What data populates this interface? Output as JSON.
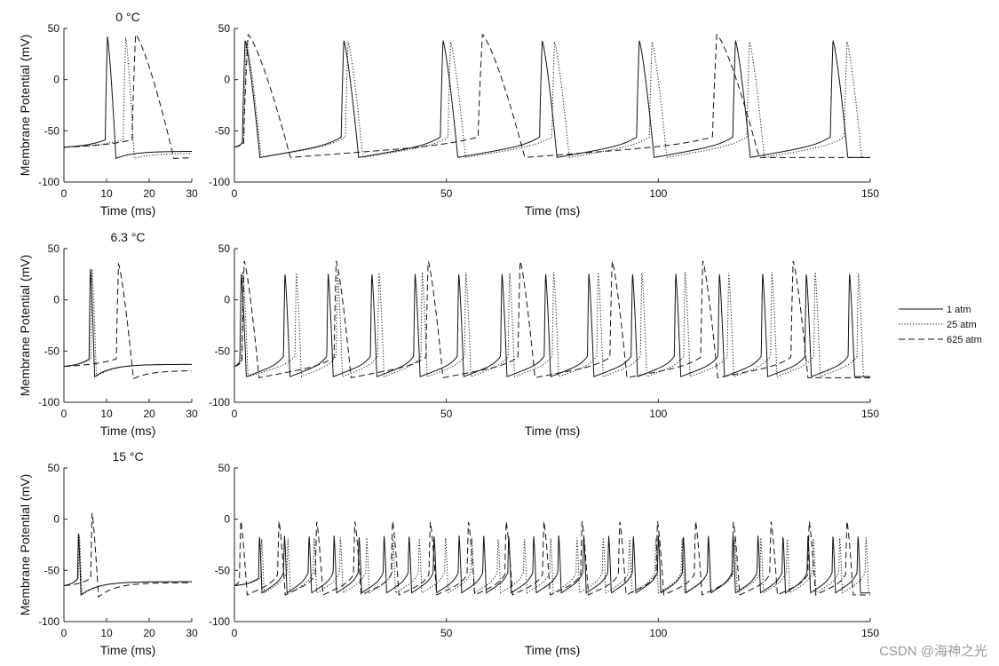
{
  "chart_data": {
    "type": "line",
    "ylabel": "Membrane Potential (mV)",
    "xlabel": "Time (ms)",
    "ylim": [
      -100,
      50
    ],
    "yticks": [
      -100,
      -50,
      0,
      50
    ],
    "legend": {
      "placement": "right",
      "entries": [
        {
          "name": "1 atm",
          "style": "solid"
        },
        {
          "name": "25 atm",
          "style": "dotted"
        },
        {
          "name": "625 atm",
          "style": "dashed"
        }
      ]
    },
    "rows": [
      {
        "title": "0 °C",
        "short": {
          "xlim": [
            0,
            30
          ],
          "xticks": [
            0,
            10,
            20,
            30
          ],
          "series": [
            {
              "name": "1 atm",
              "style": "solid",
              "rest": -66,
              "peak": 42,
              "trough": -77,
              "spikes": [
                10.2
              ],
              "rise": 0.5,
              "fall": 2.0,
              "ahp": 2.0,
              "decayTo": -70
            },
            {
              "name": "25 atm",
              "style": "dotted",
              "rest": -66,
              "peak": 41,
              "trough": -77,
              "spikes": [
                14.5
              ],
              "rise": 0.6,
              "fall": 2.0,
              "ahp": 2.2,
              "decayTo": -72
            },
            {
              "name": "625 atm",
              "style": "dashed",
              "rest": -66,
              "peak": 44,
              "trough": -77,
              "spikes": [
                16.8
              ],
              "rise": 0.8,
              "fall": 9.0,
              "ahp": 2.5,
              "decayTo": -76
            }
          ]
        },
        "long": {
          "xlim": [
            0,
            150
          ],
          "xticks": [
            0,
            50,
            100,
            150
          ],
          "series": [
            {
              "name": "1 atm",
              "style": "solid",
              "rest": -66,
              "peak": 38,
              "trough": -76,
              "spikes": [
                2.5,
                25.8,
                49.2,
                72.6,
                95.5,
                118.2,
                141.2
              ],
              "rise": 0.6,
              "fall": 3.5,
              "ahp": 3.0,
              "decayTo": -76
            },
            {
              "name": "25 atm",
              "style": "dotted",
              "rest": -66,
              "peak": 37,
              "trough": -76,
              "spikes": [
                2.8,
                26.8,
                51.0,
                75.5,
                98.5,
                121.5,
                144.5
              ],
              "rise": 0.6,
              "fall": 3.5,
              "ahp": 3.0,
              "decayTo": -76
            },
            {
              "name": "625 atm",
              "style": "dashed",
              "rest": -66,
              "peak": 44,
              "trough": -76,
              "spikes": [
                3.2,
                58.5,
                113.8
              ],
              "rise": 1.0,
              "fall": 10.0,
              "ahp": 3.0,
              "decayTo": -76
            }
          ]
        }
      },
      {
        "title": "6.3 °C",
        "short": {
          "xlim": [
            0,
            30
          ],
          "xticks": [
            0,
            10,
            20,
            30
          ],
          "series": [
            {
              "name": "1 atm",
              "style": "solid",
              "rest": -65,
              "peak": 30,
              "trough": -75,
              "spikes": [
                6.2
              ],
              "rise": 0.3,
              "fall": 1.0,
              "ahp": 1.5,
              "decayTo": -63
            },
            {
              "name": "25 atm",
              "style": "dotted",
              "rest": -65,
              "peak": 30,
              "trough": -75,
              "spikes": [
                6.6
              ],
              "rise": 0.3,
              "fall": 1.0,
              "ahp": 1.5,
              "decayTo": -63
            },
            {
              "name": "625 atm",
              "style": "dashed",
              "rest": -65,
              "peak": 35,
              "trough": -77,
              "spikes": [
                12.8
              ],
              "rise": 0.5,
              "fall": 3.5,
              "ahp": 2.0,
              "decayTo": -69
            }
          ]
        },
        "long": {
          "xlim": [
            0,
            150
          ],
          "xticks": [
            0,
            50,
            100,
            150
          ],
          "series": [
            {
              "name": "1 atm",
              "style": "solid",
              "rest": -65,
              "peak": 26,
              "trough": -75,
              "spikes": [
                1.6,
                11.9,
                22.1,
                32.4,
                42.6,
                52.9,
                63.1,
                73.4,
                83.6,
                93.9,
                104.1,
                114.4,
                124.6,
                134.9,
                145.1
              ],
              "rise": 0.3,
              "fall": 1.2,
              "ahp": 1.5,
              "decayTo": -75
            },
            {
              "name": "25 atm",
              "style": "dotted",
              "rest": -65,
              "peak": 27,
              "trough": -75,
              "spikes": [
                2.0,
                14.6,
                24.3,
                34.1,
                44.3,
                54.6,
                64.9,
                75.3,
                85.8,
                96.1,
                106.3,
                116.6,
                126.8,
                137.0,
                147.2
              ],
              "rise": 0.3,
              "fall": 1.2,
              "ahp": 1.5,
              "decayTo": -75
            },
            {
              "name": "625 atm",
              "style": "dashed",
              "rest": -65,
              "peak": 38,
              "trough": -76,
              "spikes": [
                2.3,
                24.0,
                45.7,
                67.4,
                89.1,
                110.5,
                131.8
              ],
              "rise": 0.5,
              "fall": 3.5,
              "ahp": 2.0,
              "decayTo": -76
            }
          ]
        }
      },
      {
        "title": "15 °C",
        "short": {
          "xlim": [
            0,
            30
          ],
          "xticks": [
            0,
            10,
            20,
            30
          ],
          "series": [
            {
              "name": "1 atm",
              "style": "solid",
              "rest": -65,
              "peak": -14,
              "trough": -74,
              "spikes": [
                3.4
              ],
              "rise": 0.2,
              "fall": 0.6,
              "ahp": 1.5,
              "decayTo": -61
            },
            {
              "name": "25 atm",
              "style": "dotted",
              "rest": -65,
              "peak": -15,
              "trough": -74,
              "spikes": [
                3.6
              ],
              "rise": 0.2,
              "fall": 0.6,
              "ahp": 1.5,
              "decayTo": -61
            },
            {
              "name": "625 atm",
              "style": "dashed",
              "rest": -65,
              "peak": 6,
              "trough": -76,
              "spikes": [
                6.6
              ],
              "rise": 0.3,
              "fall": 1.5,
              "ahp": 1.5,
              "decayTo": -62
            }
          ]
        },
        "long": {
          "xlim": [
            0,
            150
          ],
          "xticks": [
            0,
            50,
            100,
            150
          ],
          "series": [
            {
              "name": "1 atm",
              "style": "solid",
              "rest": -65,
              "peak": -16,
              "trough": -72,
              "spikes": [
                5.9,
                11.8,
                17.6,
                23.5,
                29.4,
                35.3,
                41.2,
                47.1,
                53.0,
                58.8,
                64.7,
                70.6,
                76.5,
                82.4,
                88.3,
                94.1,
                100.0,
                105.9,
                111.8,
                117.6,
                123.5,
                129.4,
                135.3,
                141.2,
                147.1
              ],
              "rise": 0.2,
              "fall": 0.6,
              "ahp": 1.0,
              "decayTo": -72
            },
            {
              "name": "25 atm",
              "style": "dotted",
              "rest": -65,
              "peak": -18,
              "trough": -72,
              "spikes": [
                6.4,
                12.6,
                18.8,
                25.0,
                31.2,
                37.4,
                43.6,
                49.8,
                56.0,
                62.2,
                68.4,
                74.6,
                80.8,
                87.0,
                93.2,
                99.4,
                105.6,
                111.8,
                118.0,
                124.2,
                130.4,
                136.6,
                142.8,
                149.0
              ],
              "rise": 0.2,
              "fall": 0.6,
              "ahp": 1.0,
              "decayTo": -72
            },
            {
              "name": "625 atm",
              "style": "dashed",
              "rest": -65,
              "peak": -2,
              "trough": -74,
              "spikes": [
                1.5,
                10.5,
                19.4,
                28.4,
                37.3,
                46.2,
                55.2,
                64.1,
                73.0,
                82.0,
                90.9,
                99.8,
                108.8,
                117.7,
                126.6,
                135.6,
                144.5
              ],
              "rise": 0.3,
              "fall": 1.5,
              "ahp": 1.5,
              "decayTo": -74
            }
          ]
        }
      }
    ]
  },
  "watermark": "CSDN @海神之光"
}
